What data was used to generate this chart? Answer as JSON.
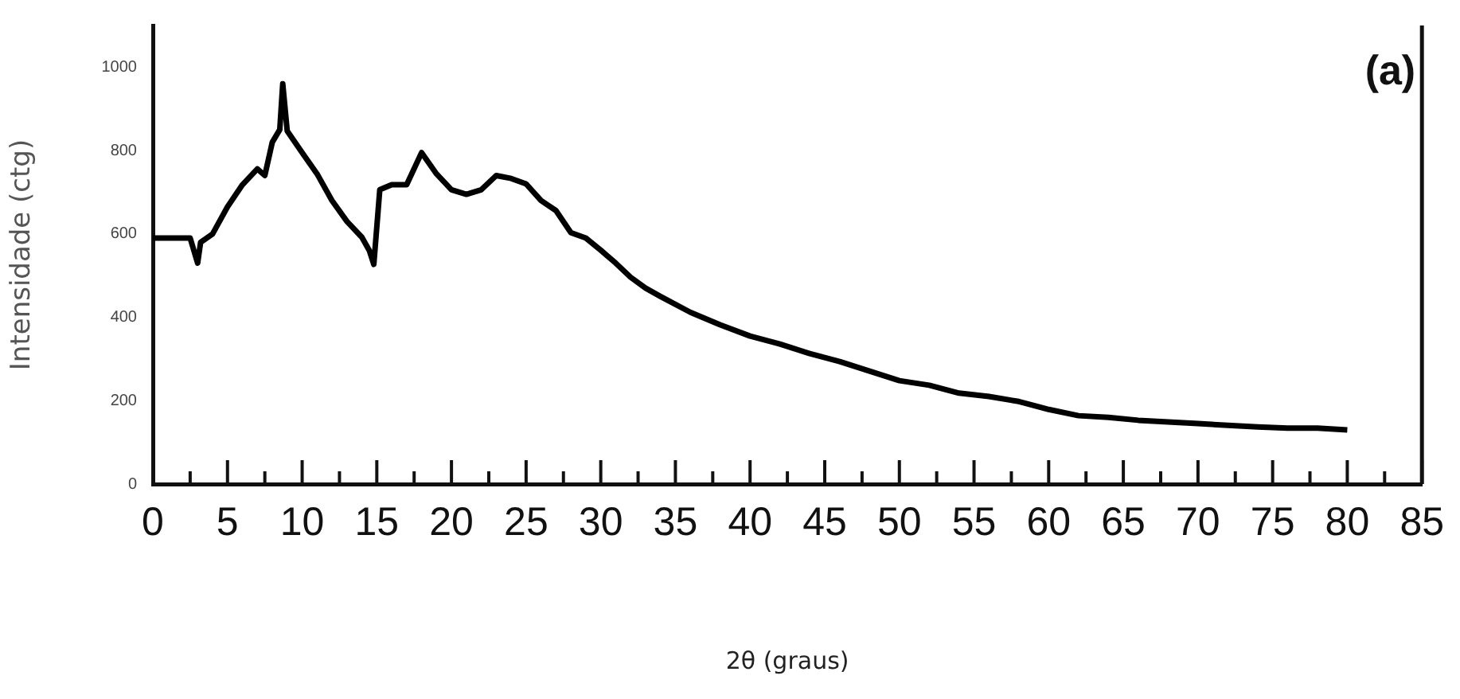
{
  "chart_data": {
    "type": "line",
    "xlabel": "2θ (graus)",
    "ylabel": "Intensidade (ctg)",
    "annotations": [
      "(a)"
    ],
    "xlim": [
      0,
      85
    ],
    "ylim": [
      0,
      1100
    ],
    "xticks": [
      0,
      {
        "value": 2.5,
        "label": null
      },
      5,
      {
        "value": 7.5,
        "label": null
      },
      10,
      {
        "value": 12.5,
        "label": null
      },
      15,
      {
        "value": 17.5,
        "label": null
      },
      20,
      {
        "value": 22.5,
        "label": null
      },
      25,
      {
        "value": 27.5,
        "label": null
      },
      30,
      {
        "value": 32.5,
        "label": null
      },
      35,
      {
        "value": 37.5,
        "label": null
      },
      40,
      {
        "value": 42.5,
        "label": null
      },
      45,
      {
        "value": 47.5,
        "label": null
      },
      50,
      {
        "value": 52.5,
        "label": null
      },
      55,
      {
        "value": 57.5,
        "label": null
      },
      60,
      {
        "value": 62.5,
        "label": null
      },
      65,
      {
        "value": 67.5,
        "label": null
      },
      70,
      {
        "value": 72.5,
        "label": null
      },
      75,
      {
        "value": 77.5,
        "label": null
      },
      80,
      {
        "value": 82.5,
        "label": null
      },
      85
    ],
    "yticks": [
      0,
      200,
      400,
      600,
      800,
      1000
    ],
    "legend": false,
    "marker": "none",
    "line_style": "solid",
    "series": [
      {
        "color": "#000000",
        "x": [
          0,
          2.5,
          3,
          3.2,
          4,
          5,
          6,
          7,
          7.5,
          8,
          8.5,
          8.7,
          9,
          10,
          11,
          12,
          13,
          14,
          14.5,
          14.8,
          15.2,
          16,
          17,
          18,
          19,
          20,
          21,
          22,
          23,
          24,
          25,
          26,
          27,
          28,
          29,
          30,
          31,
          32,
          33,
          34,
          36,
          38,
          40,
          42,
          44,
          46,
          48,
          50,
          52,
          54,
          56,
          58,
          60,
          62,
          64,
          66,
          68,
          70,
          72,
          74,
          76,
          78,
          80
        ],
        "values": [
          590,
          590,
          530,
          580,
          600,
          665,
          718,
          756,
          740,
          820,
          850,
          960,
          847,
          795,
          744,
          680,
          630,
          592,
          560,
          527,
          706,
          718,
          718,
          795,
          744,
          706,
          695,
          706,
          740,
          733,
          720,
          680,
          656,
          603,
          590,
          561,
          530,
          496,
          470,
          450,
          412,
          382,
          355,
          336,
          313,
          294,
          271,
          248,
          237,
          218,
          210,
          198,
          179,
          164,
          160,
          153,
          149,
          145,
          141,
          137,
          134,
          134,
          130
        ]
      }
    ]
  }
}
